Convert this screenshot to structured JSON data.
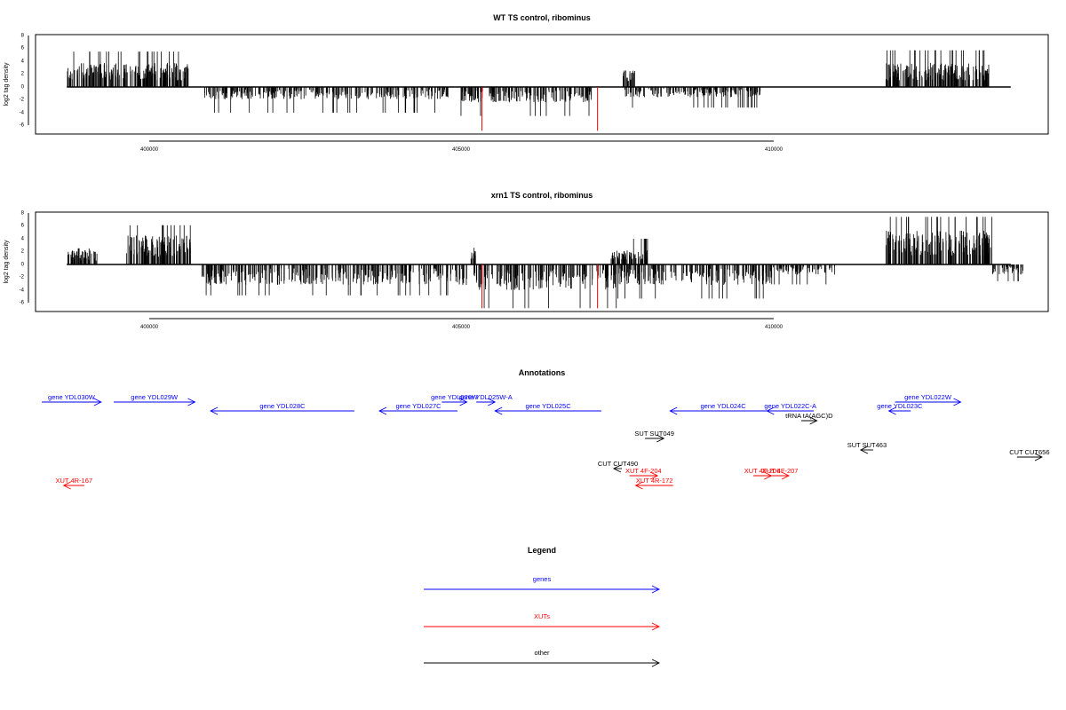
{
  "tracks": [
    {
      "title": "WT TS control, ribominus",
      "ylabel": "log2 tag density",
      "yticks": [
        8,
        6,
        4,
        2,
        0,
        -2,
        -4,
        -6
      ],
      "xticks": [
        "400000",
        "405000",
        "410000"
      ]
    },
    {
      "title": "xrn1 TS control, ribominus",
      "ylabel": "log2 tag density",
      "yticks": [
        8,
        6,
        4,
        2,
        0,
        -2,
        -4,
        -6
      ],
      "xticks": [
        "400000",
        "405000",
        "410000"
      ]
    }
  ],
  "chart_data": [
    {
      "type": "bar",
      "title": "WT TS control, ribominus",
      "ylabel": "log2 tag density",
      "xlim": [
        398200,
        414400
      ],
      "ylim": [
        -7,
        8
      ],
      "highlight_color": "#ff0000",
      "bar_color": "#000000",
      "positive_regions": [
        {
          "start": 398700,
          "end": 400650,
          "typical": 2.5,
          "max": 5.5
        },
        {
          "start": 407600,
          "end": 407800,
          "typical": 1.8,
          "max": 2.6
        },
        {
          "start": 411800,
          "end": 413500,
          "typical": 2.5,
          "max": 5.7
        }
      ],
      "negative_regions": [
        {
          "start": 400900,
          "end": 404800,
          "typical": -1.2,
          "min": -4.0
        },
        {
          "start": 405000,
          "end": 407100,
          "typical": -1.5,
          "min": -4.5
        },
        {
          "start": 407600,
          "end": 409800,
          "typical": -1.0,
          "min": -3.2
        }
      ],
      "highlight_bars": [
        {
          "x": 405340,
          "value": -6.8
        },
        {
          "x": 407190,
          "value": -6.8
        }
      ]
    },
    {
      "type": "bar",
      "title": "xrn1 TS control, ribominus",
      "ylabel": "log2 tag density",
      "xlim": [
        398200,
        414400
      ],
      "ylim": [
        -7,
        8
      ],
      "highlight_color": "#ff0000",
      "bar_color": "#000000",
      "positive_regions": [
        {
          "start": 398700,
          "end": 399200,
          "typical": 1.5,
          "max": 2.5
        },
        {
          "start": 399650,
          "end": 400700,
          "typical": 3.0,
          "max": 6.1
        },
        {
          "start": 405150,
          "end": 405250,
          "typical": 1.5,
          "max": 2.6
        },
        {
          "start": 407400,
          "end": 408000,
          "typical": 1.5,
          "max": 4.0
        },
        {
          "start": 411800,
          "end": 413500,
          "typical": 3.5,
          "max": 7.4
        }
      ],
      "negative_regions": [
        {
          "start": 400850,
          "end": 405100,
          "typical": -2.0,
          "min": -4.8
        },
        {
          "start": 405200,
          "end": 407500,
          "typical": -2.5,
          "min": -6.8
        },
        {
          "start": 407500,
          "end": 410000,
          "typical": -2.0,
          "min": -5.3
        },
        {
          "start": 410000,
          "end": 411000,
          "typical": -1.0,
          "min": -3.1
        },
        {
          "start": 413500,
          "end": 414000,
          "typical": -1.0,
          "min": -2.6
        }
      ],
      "highlight_bars": [
        {
          "x": 405340,
          "value": -6.8
        },
        {
          "x": 407190,
          "value": -6.8
        }
      ]
    }
  ],
  "annotations": {
    "title": "Annotations",
    "items": [
      {
        "label": "gene YDL030W",
        "color": "#0000ff",
        "start": 398300,
        "end": 399250,
        "dir": "right",
        "row": 0
      },
      {
        "label": "gene YDL029W",
        "color": "#0000ff",
        "start": 399450,
        "end": 400750,
        "dir": "right",
        "row": 0
      },
      {
        "label": "gene YDL028C",
        "color": "#0000ff",
        "start": 401000,
        "end": 403300,
        "dir": "left",
        "row": 1
      },
      {
        "label": "gene YDL026W",
        "color": "#0000ff",
        "start": 404700,
        "end": 405100,
        "dir": "right",
        "row": 0
      },
      {
        "label": "gene YDL025W-A",
        "color": "#0000ff",
        "start": 405250,
        "end": 405550,
        "dir": "right",
        "row": 0
      },
      {
        "label": "gene YDL027C",
        "color": "#0000ff",
        "start": 403700,
        "end": 404950,
        "dir": "left",
        "row": 1
      },
      {
        "label": "gene YDL025C",
        "color": "#0000ff",
        "start": 405550,
        "end": 407250,
        "dir": "left",
        "row": 1
      },
      {
        "label": "gene YDL024C",
        "color": "#0000ff",
        "start": 408350,
        "end": 410050,
        "dir": "left",
        "row": 1
      },
      {
        "label": "gene YDL022C-A",
        "color": "#0000ff",
        "start": 409900,
        "end": 410650,
        "dir": "left",
        "row": 1
      },
      {
        "label": "tRNA tA(AGC)D",
        "color": "#000000",
        "start": 410450,
        "end": 410700,
        "dir": "right",
        "row": 2
      },
      {
        "label": "gene YDL022W",
        "color": "#0000ff",
        "start": 411950,
        "end": 413000,
        "dir": "right",
        "row": 0
      },
      {
        "label": "gene YDL023C",
        "color": "#0000ff",
        "start": 411850,
        "end": 412200,
        "dir": "left",
        "row": 1
      },
      {
        "label": "SUT SUT049",
        "color": "#000000",
        "start": 407950,
        "end": 408250,
        "dir": "right",
        "row": 3
      },
      {
        "label": "SUT SUT463",
        "color": "#000000",
        "start": 411400,
        "end": 411600,
        "dir": "left",
        "row": 4
      },
      {
        "label": "CUT CUT656",
        "color": "#000000",
        "start": 413900,
        "end": 414300,
        "dir": "right",
        "row": 5
      },
      {
        "label": "CUT CUT490",
        "color": "#000000",
        "start": 407450,
        "end": 407580,
        "dir": "left",
        "row": 6
      },
      {
        "label": "XUT 4F-204",
        "color": "#ff0000",
        "start": 407700,
        "end": 408150,
        "dir": "right",
        "row": 7
      },
      {
        "label": "XUT 4R-172",
        "color": "#ff0000",
        "start": 407800,
        "end": 408400,
        "dir": "left",
        "row": 8
      },
      {
        "label": "XUT 4R-167",
        "color": "#ff0000",
        "start": 398650,
        "end": 398980,
        "dir": "left",
        "row": 8
      },
      {
        "label": "XUT 4F-206",
        "color": "#ff0000",
        "start": 409680,
        "end": 409970,
        "dir": "right",
        "row": 7
      },
      {
        "label": "XUT 4F-207",
        "color": "#ff0000",
        "start": 409970,
        "end": 410250,
        "dir": "right",
        "row": 7
      }
    ]
  },
  "legend": {
    "title": "Legend",
    "items": [
      {
        "label": "genes",
        "color": "#0000ff"
      },
      {
        "label": "XUTs",
        "color": "#ff0000"
      },
      {
        "label": "other",
        "color": "#000000"
      }
    ]
  }
}
